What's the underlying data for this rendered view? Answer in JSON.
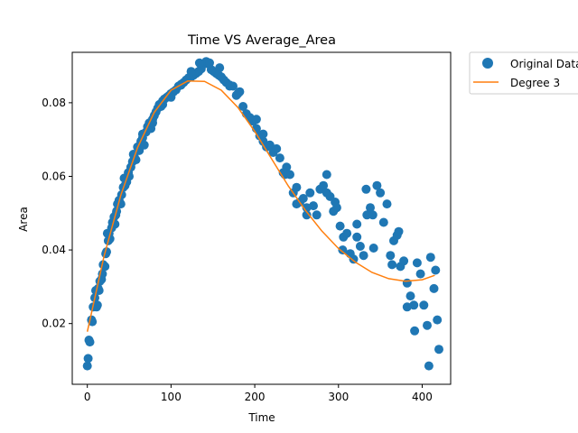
{
  "chart_data": {
    "type": "scatter",
    "title": "Time VS Average_Area",
    "xlabel": "Time",
    "ylabel": "Area",
    "xlim": [
      -18,
      434
    ],
    "ylim": [
      0.0035,
      0.0937
    ],
    "xticks": [
      0,
      100,
      200,
      300,
      400
    ],
    "yticks": [
      0.02,
      0.04,
      0.06,
      0.08
    ],
    "xtick_labels": [
      "0",
      "100",
      "200",
      "300",
      "400"
    ],
    "ytick_labels": [
      "0.02",
      "0.04",
      "0.06",
      "0.08"
    ],
    "grid": false,
    "legend_placement": "outside-top-right",
    "legend": [
      "Original Data",
      "Degree 3"
    ],
    "series": [
      {
        "name": "Original Data",
        "kind": "scatter",
        "color": "#1f77b4",
        "points": [
          [
            0,
            0.0085
          ],
          [
            1,
            0.0105
          ],
          [
            2,
            0.0155
          ],
          [
            3,
            0.015
          ],
          [
            5,
            0.021
          ],
          [
            6,
            0.0205
          ],
          [
            7,
            0.0245
          ],
          [
            9,
            0.027
          ],
          [
            10,
            0.029
          ],
          [
            12,
            0.025
          ],
          [
            13,
            0.0295
          ],
          [
            15,
            0.0315
          ],
          [
            17,
            0.032
          ],
          [
            18,
            0.0335
          ],
          [
            19,
            0.036
          ],
          [
            21,
            0.0355
          ],
          [
            22,
            0.039
          ],
          [
            23,
            0.0395
          ],
          [
            25,
            0.0425
          ],
          [
            26,
            0.0445
          ],
          [
            27,
            0.043
          ],
          [
            29,
            0.046
          ],
          [
            30,
            0.0475
          ],
          [
            32,
            0.049
          ],
          [
            33,
            0.047
          ],
          [
            35,
            0.0505
          ],
          [
            36,
            0.0525
          ],
          [
            38,
            0.0535
          ],
          [
            40,
            0.0525
          ],
          [
            41,
            0.055
          ],
          [
            43,
            0.057
          ],
          [
            45,
            0.0575
          ],
          [
            47,
            0.0585
          ],
          [
            49,
            0.061
          ],
          [
            50,
            0.06
          ],
          [
            52,
            0.0625
          ],
          [
            54,
            0.064
          ],
          [
            56,
            0.0655
          ],
          [
            58,
            0.0645
          ],
          [
            60,
            0.068
          ],
          [
            62,
            0.067
          ],
          [
            64,
            0.0695
          ],
          [
            66,
            0.0705
          ],
          [
            68,
            0.0685
          ],
          [
            70,
            0.072
          ],
          [
            72,
            0.0735
          ],
          [
            74,
            0.0745
          ],
          [
            76,
            0.073
          ],
          [
            78,
            0.0755
          ],
          [
            80,
            0.0765
          ],
          [
            82,
            0.0775
          ],
          [
            84,
            0.0785
          ],
          [
            86,
            0.0795
          ],
          [
            88,
            0.079
          ],
          [
            90,
            0.0805
          ],
          [
            92,
            0.081
          ],
          [
            95,
            0.0815
          ],
          [
            98,
            0.082
          ],
          [
            100,
            0.0825
          ],
          [
            103,
            0.083
          ],
          [
            106,
            0.0835
          ],
          [
            109,
            0.0845
          ],
          [
            112,
            0.085
          ],
          [
            115,
            0.0855
          ],
          [
            118,
            0.0862
          ],
          [
            121,
            0.0868
          ],
          [
            124,
            0.087
          ],
          [
            127,
            0.0875
          ],
          [
            130,
            0.088
          ],
          [
            133,
            0.0885
          ],
          [
            136,
            0.0892
          ],
          [
            139,
            0.0905
          ],
          [
            142,
            0.0912
          ],
          [
            145,
            0.0905
          ],
          [
            148,
            0.089
          ],
          [
            151,
            0.0885
          ],
          [
            154,
            0.088
          ],
          [
            157,
            0.0875
          ],
          [
            160,
            0.087
          ],
          [
            163,
            0.0862
          ],
          [
            166,
            0.0855
          ],
          [
            170,
            0.0848
          ],
          [
            174,
            0.0845
          ],
          [
            178,
            0.082
          ],
          [
            182,
            0.083
          ],
          [
            186,
            0.079
          ],
          [
            190,
            0.077
          ],
          [
            194,
            0.076
          ],
          [
            198,
            0.075
          ],
          [
            202,
            0.073
          ],
          [
            206,
            0.071
          ],
          [
            210,
            0.0695
          ],
          [
            214,
            0.068
          ],
          [
            218,
            0.0685
          ],
          [
            222,
            0.0665
          ],
          [
            226,
            0.0675
          ],
          [
            230,
            0.065
          ],
          [
            234,
            0.061
          ],
          [
            238,
            0.0625
          ],
          [
            242,
            0.0605
          ],
          [
            246,
            0.0555
          ],
          [
            250,
            0.057
          ],
          [
            254,
            0.053
          ],
          [
            258,
            0.054
          ],
          [
            262,
            0.0515
          ],
          [
            266,
            0.0555
          ],
          [
            270,
            0.052
          ],
          [
            274,
            0.0495
          ],
          [
            278,
            0.0565
          ],
          [
            282,
            0.0575
          ],
          [
            286,
            0.0555
          ],
          [
            290,
            0.0545
          ],
          [
            294,
            0.0505
          ],
          [
            298,
            0.0515
          ],
          [
            302,
            0.0465
          ],
          [
            306,
            0.0435
          ],
          [
            310,
            0.0445
          ],
          [
            314,
            0.039
          ],
          [
            318,
            0.0375
          ],
          [
            322,
            0.0435
          ],
          [
            326,
            0.041
          ],
          [
            330,
            0.0385
          ],
          [
            334,
            0.0495
          ],
          [
            338,
            0.0515
          ],
          [
            342,
            0.0405
          ],
          [
            346,
            0.0575
          ],
          [
            350,
            0.0555
          ],
          [
            354,
            0.0475
          ],
          [
            358,
            0.0525
          ],
          [
            362,
            0.0385
          ],
          [
            366,
            0.0425
          ],
          [
            370,
            0.044
          ],
          [
            374,
            0.0355
          ],
          [
            378,
            0.037
          ],
          [
            382,
            0.031
          ],
          [
            386,
            0.0275
          ],
          [
            390,
            0.025
          ],
          [
            394,
            0.0365
          ],
          [
            398,
            0.0335
          ],
          [
            402,
            0.025
          ],
          [
            406,
            0.0195
          ],
          [
            410,
            0.038
          ],
          [
            414,
            0.0295
          ],
          [
            416,
            0.0345
          ],
          [
            418,
            0.021
          ],
          [
            420,
            0.013
          ],
          [
            408,
            0.0085
          ],
          [
            382,
            0.0245
          ],
          [
            391,
            0.018
          ],
          [
            364,
            0.036
          ],
          [
            372,
            0.045
          ],
          [
            341,
            0.0495
          ],
          [
            333,
            0.0565
          ],
          [
            322,
            0.047
          ],
          [
            305,
            0.04
          ],
          [
            296,
            0.053
          ],
          [
            286,
            0.0605
          ],
          [
            262,
            0.0495
          ],
          [
            250,
            0.0525
          ],
          [
            236,
            0.0605
          ],
          [
            210,
            0.0715
          ],
          [
            202,
            0.0755
          ],
          [
            180,
            0.0825
          ],
          [
            170,
            0.0845
          ],
          [
            158,
            0.0895
          ],
          [
            146,
            0.0908
          ],
          [
            134,
            0.0908
          ],
          [
            124,
            0.0885
          ],
          [
            112,
            0.0848
          ],
          [
            100,
            0.0815
          ],
          [
            90,
            0.0795
          ],
          [
            78,
            0.0745
          ],
          [
            66,
            0.0715
          ],
          [
            55,
            0.066
          ],
          [
            44,
            0.0595
          ],
          [
            34,
            0.0495
          ],
          [
            24,
            0.0445
          ],
          [
            14,
            0.029
          ],
          [
            11,
            0.0245
          ]
        ]
      },
      {
        "name": "Degree 3",
        "kind": "line",
        "color": "#ff7f0e",
        "points": [
          [
            0,
            0.0178
          ],
          [
            20,
            0.0383
          ],
          [
            40,
            0.0549
          ],
          [
            60,
            0.0678
          ],
          [
            80,
            0.0774
          ],
          [
            100,
            0.0834
          ],
          [
            120,
            0.0859
          ],
          [
            140,
            0.0858
          ],
          [
            160,
            0.0834
          ],
          [
            180,
            0.0787
          ],
          [
            200,
            0.0722
          ],
          [
            220,
            0.0648
          ],
          [
            240,
            0.0574
          ],
          [
            260,
            0.0509
          ],
          [
            280,
            0.0452
          ],
          [
            300,
            0.0404
          ],
          [
            320,
            0.0367
          ],
          [
            340,
            0.0339
          ],
          [
            360,
            0.0322
          ],
          [
            380,
            0.0315
          ],
          [
            400,
            0.0319
          ],
          [
            415,
            0.0331
          ]
        ]
      }
    ]
  }
}
